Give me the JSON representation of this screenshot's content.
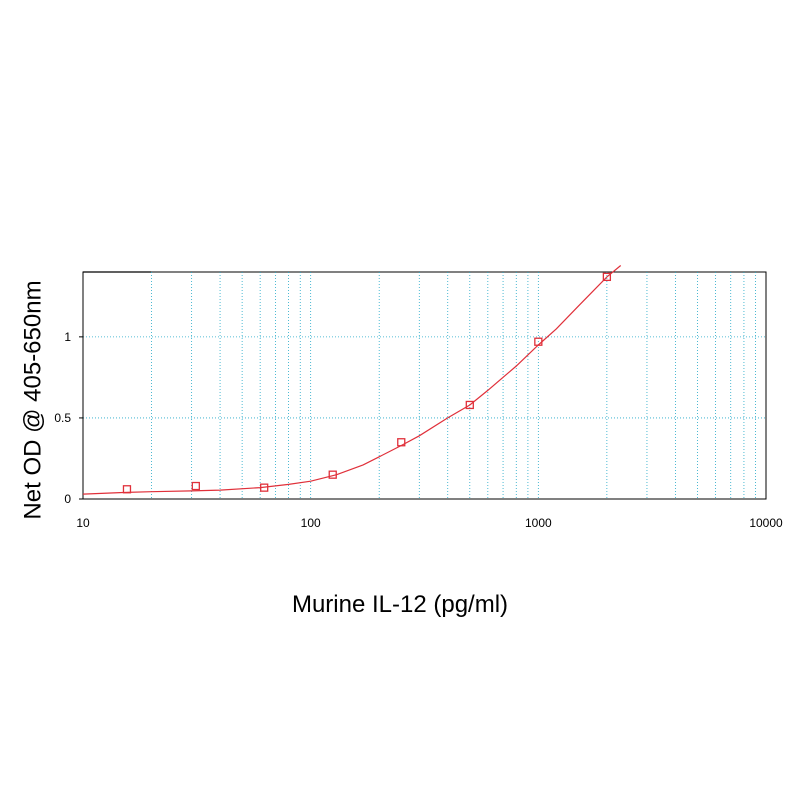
{
  "chart_data": {
    "type": "scatter",
    "title": "",
    "xlabel": "Murine IL-12 (pg/ml)",
    "ylabel": "Net OD @ 405-650nm",
    "x_scale": "log",
    "xlim": [
      10,
      10000
    ],
    "ylim": [
      0,
      1.4
    ],
    "grid": true,
    "x_tick_values": [
      10,
      100,
      1000,
      10000
    ],
    "x_tick_labels": [
      "10",
      "100",
      "1000",
      "10000"
    ],
    "y_tick_values": [
      0,
      0.5,
      1
    ],
    "y_tick_labels": [
      "0",
      "0.5",
      "1"
    ],
    "series": [
      {
        "marker": "square",
        "x": [
          15.6,
          31.3,
          62.5,
          125,
          250,
          500,
          1000,
          2000
        ],
        "y": [
          0.06,
          0.08,
          0.07,
          0.15,
          0.35,
          0.58,
          0.97,
          1.37
        ]
      }
    ],
    "fit_curve": {
      "color": "#e0303a",
      "x": [
        10,
        15,
        20,
        30,
        40,
        60,
        80,
        100,
        130,
        170,
        200,
        250,
        300,
        400,
        500,
        600,
        800,
        1000,
        1200,
        1500,
        2000,
        2300
      ],
      "y": [
        0.03,
        0.04,
        0.045,
        0.05,
        0.055,
        0.07,
        0.09,
        0.11,
        0.15,
        0.21,
        0.26,
        0.33,
        0.39,
        0.5,
        0.58,
        0.67,
        0.82,
        0.95,
        1.05,
        1.19,
        1.37,
        1.44
      ]
    },
    "colors": {
      "marker": "#e0303a",
      "curve": "#e0303a",
      "grid": "#22a8c8",
      "axis": "#000000"
    }
  }
}
